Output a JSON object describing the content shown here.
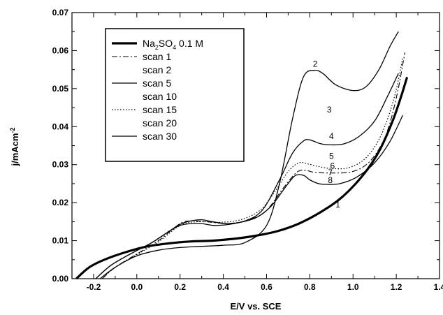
{
  "chart_data": {
    "type": "line",
    "xlabel": "E/V vs. SCE",
    "ylabel": "j/mAcm",
    "ylabel_superscript": "-2",
    "xlim": [
      -0.3,
      1.4
    ],
    "ylim": [
      0.0,
      0.07
    ],
    "x_ticks": [
      -0.2,
      0.0,
      0.2,
      0.4,
      0.6,
      0.8,
      1.0,
      1.2,
      1.4
    ],
    "x_tick_labels": [
      "-0.2",
      "0.0",
      "0.2",
      "0.4",
      "0.6",
      "0.8",
      "1.0",
      "1.2",
      "1.4"
    ],
    "y_ticks": [
      0.0,
      0.01,
      0.02,
      0.03,
      0.04,
      0.05,
      0.06,
      0.07
    ],
    "y_tick_labels": [
      "0.00",
      "0.01",
      "0.02",
      "0.03",
      "0.04",
      "0.05",
      "0.06",
      "0.07"
    ],
    "grid": false,
    "legend_position": "top-left",
    "legend": [
      {
        "name_parts": [
          "Na",
          "2",
          "SO",
          "4",
          " 0.1 M"
        ],
        "style": "thick"
      },
      {
        "name": "scan 1",
        "style": "dashdot"
      },
      {
        "name": "scan 2",
        "style": "none"
      },
      {
        "name": "scan 5",
        "style": "solid"
      },
      {
        "name": "scan 10",
        "style": "none"
      },
      {
        "name": "scan 15",
        "style": "dotted"
      },
      {
        "name": "scan 20",
        "style": "none"
      },
      {
        "name": "scan 30",
        "style": "solid"
      }
    ],
    "series": [
      {
        "name": "Na2SO4 0.1 M",
        "style": "thick",
        "x": [
          -0.28,
          -0.22,
          -0.15,
          -0.05,
          0.05,
          0.15,
          0.25,
          0.35,
          0.45,
          0.55,
          0.65,
          0.75,
          0.85,
          0.95,
          1.05,
          1.12,
          1.18,
          1.22,
          1.25
        ],
        "y": [
          0.0,
          0.003,
          0.005,
          0.007,
          0.0085,
          0.0093,
          0.0098,
          0.01,
          0.0105,
          0.0113,
          0.0125,
          0.0145,
          0.0175,
          0.0215,
          0.0275,
          0.0335,
          0.041,
          0.0475,
          0.053
        ]
      },
      {
        "name": "scan 2",
        "x": [
          -0.17,
          -0.1,
          0.0,
          0.1,
          0.2,
          0.3,
          0.4,
          0.5,
          0.6,
          0.66,
          0.72,
          0.77,
          0.82,
          0.86,
          0.92,
          1.0,
          1.06,
          1.12,
          1.17,
          1.21
        ],
        "y": [
          0.0,
          0.003,
          0.006,
          0.0075,
          0.0082,
          0.0085,
          0.0088,
          0.0095,
          0.014,
          0.025,
          0.042,
          0.053,
          0.0548,
          0.054,
          0.051,
          0.0495,
          0.0505,
          0.055,
          0.061,
          0.065
        ]
      },
      {
        "name": "scan 5",
        "x": [
          -0.19,
          -0.12,
          -0.03,
          0.07,
          0.15,
          0.2,
          0.25,
          0.3,
          0.35,
          0.42,
          0.5,
          0.58,
          0.66,
          0.72,
          0.77,
          0.8,
          0.85,
          0.9,
          0.96,
          1.03,
          1.1,
          1.16,
          1.21
        ],
        "y": [
          0.0,
          0.0035,
          0.0065,
          0.0095,
          0.0125,
          0.0143,
          0.0152,
          0.0155,
          0.015,
          0.0145,
          0.0152,
          0.018,
          0.026,
          0.033,
          0.0362,
          0.0365,
          0.0355,
          0.0352,
          0.0355,
          0.0375,
          0.0415,
          0.048,
          0.054
        ]
      },
      {
        "name": "scan 30",
        "x": [
          -0.19,
          -0.12,
          -0.03,
          0.07,
          0.15,
          0.2,
          0.25,
          0.3,
          0.36,
          0.45,
          0.55,
          0.62,
          0.68,
          0.73,
          0.77,
          0.8,
          0.84,
          0.88,
          0.94,
          1.02,
          1.1,
          1.17,
          1.23
        ],
        "y": [
          0.0,
          0.0035,
          0.0065,
          0.0095,
          0.0125,
          0.014,
          0.0145,
          0.0145,
          0.014,
          0.0145,
          0.016,
          0.019,
          0.0235,
          0.027,
          0.0272,
          0.026,
          0.025,
          0.0248,
          0.025,
          0.0268,
          0.0305,
          0.036,
          0.043
        ]
      },
      {
        "name": "scan 1",
        "style": "dashdot",
        "x": [
          -0.16,
          -0.1,
          0.0,
          0.1,
          0.2,
          0.25,
          0.32,
          0.42,
          0.52,
          0.6,
          0.68,
          0.74,
          0.78,
          0.82,
          0.9,
          1.0,
          1.08,
          1.15,
          1.2,
          1.24
        ],
        "y": [
          0.0,
          0.003,
          0.0065,
          0.01,
          0.0145,
          0.0152,
          0.015,
          0.0145,
          0.0155,
          0.018,
          0.024,
          0.028,
          0.0285,
          0.028,
          0.0278,
          0.0282,
          0.031,
          0.0375,
          0.0475,
          0.0595
        ]
      },
      {
        "name": "scan 15",
        "style": "dotted",
        "x": [
          -0.16,
          -0.1,
          0.0,
          0.1,
          0.2,
          0.28,
          0.38,
          0.48,
          0.57,
          0.64,
          0.7,
          0.75,
          0.79,
          0.84,
          0.9,
          0.98,
          1.06,
          1.13,
          1.19,
          1.23
        ],
        "y": [
          0.0,
          0.003,
          0.0063,
          0.0097,
          0.014,
          0.015,
          0.0148,
          0.0155,
          0.018,
          0.023,
          0.0282,
          0.0305,
          0.0302,
          0.0295,
          0.029,
          0.0292,
          0.0318,
          0.0378,
          0.0475,
          0.058
        ]
      }
    ],
    "curve_labels": [
      {
        "text": "1",
        "x": 0.93,
        "y": 0.0195
      },
      {
        "text": "2",
        "x": 0.825,
        "y": 0.0565
      },
      {
        "text": "3",
        "x": 0.89,
        "y": 0.0445
      },
      {
        "text": "4",
        "x": 0.9,
        "y": 0.0375
      },
      {
        "text": "5",
        "x": 0.9,
        "y": 0.0322
      },
      {
        "text": "6",
        "x": 0.905,
        "y": 0.0297
      },
      {
        "text": "7",
        "x": 0.895,
        "y": 0.0279
      },
      {
        "text": "8",
        "x": 0.895,
        "y": 0.0259
      }
    ]
  }
}
